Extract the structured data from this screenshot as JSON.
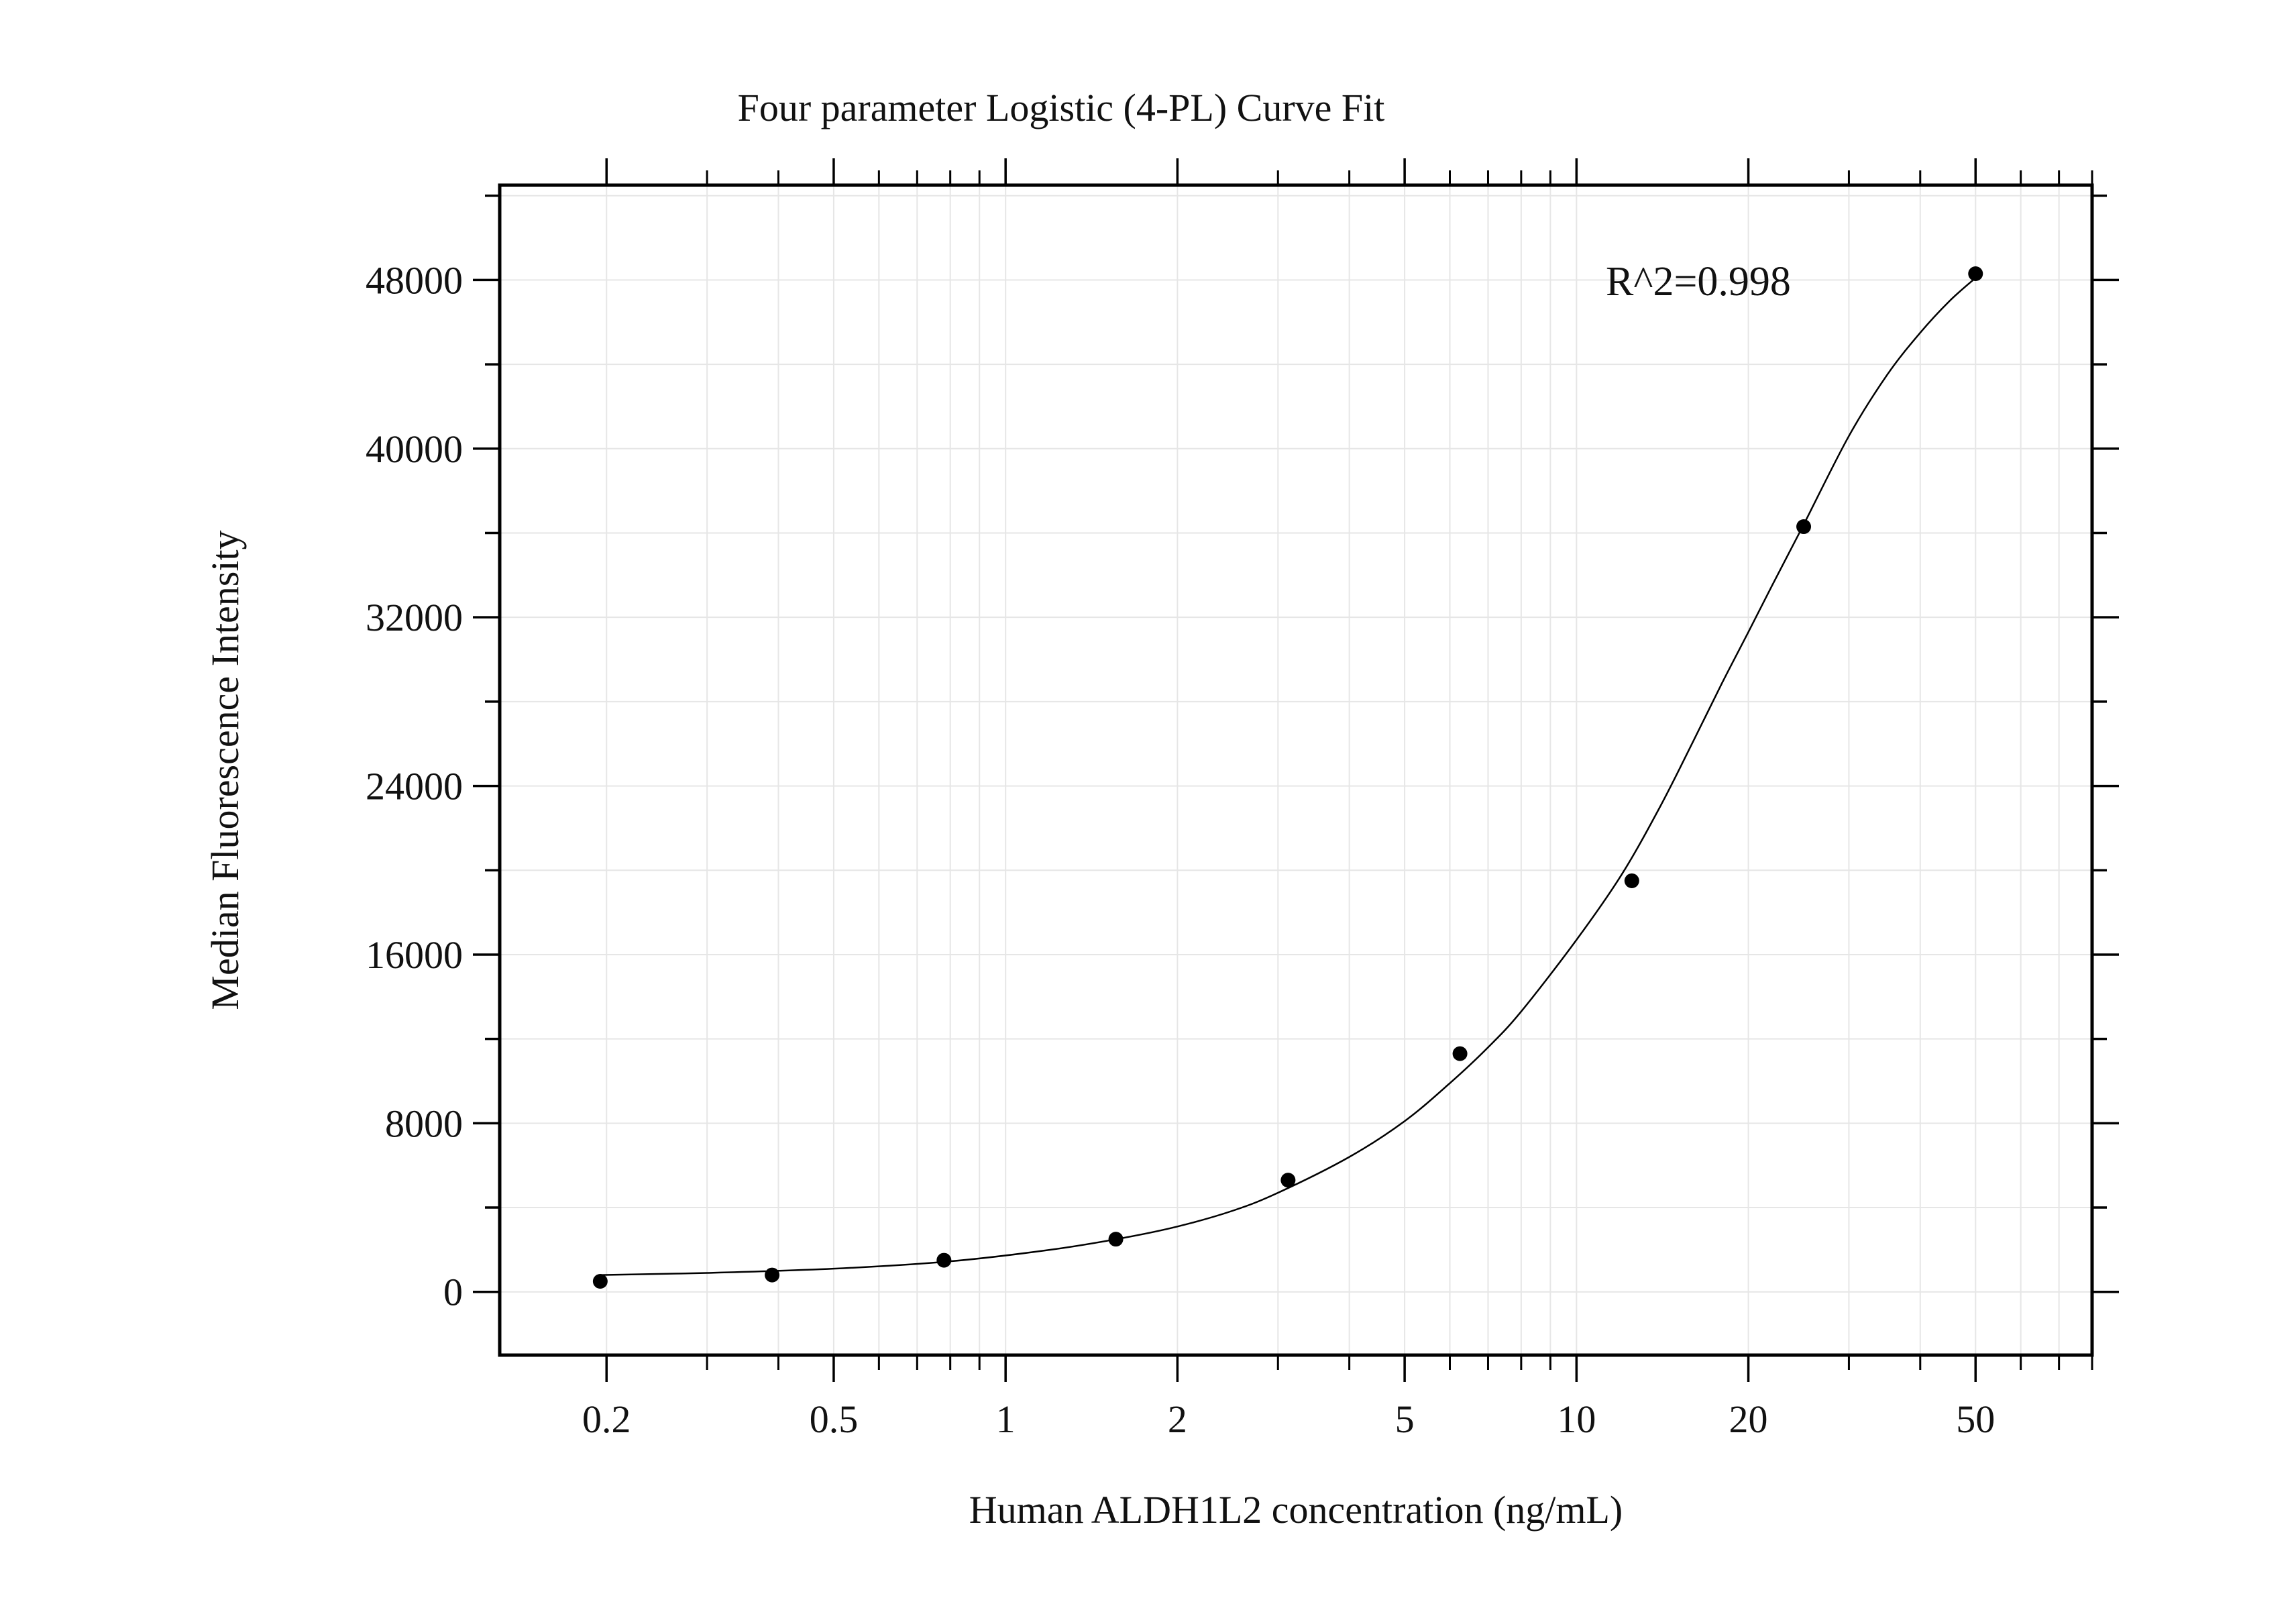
{
  "chart_data": {
    "type": "scatter",
    "title": "Four parameter Logistic (4-PL) Curve Fit",
    "xlabel": "Human ALDH1L2 concentration (ng/mL)",
    "ylabel": "Median Fluorescence Intensity",
    "x_scale": "log",
    "xlim": [
      0.13,
      80
    ],
    "ylim": [
      -3000,
      52500
    ],
    "x_ticks": [
      0.2,
      0.5,
      1,
      2,
      5,
      10,
      20,
      50
    ],
    "x_tick_labels": [
      "0.2",
      "0.5",
      "1",
      "2",
      "5",
      "10",
      "20",
      "50"
    ],
    "y_ticks": [
      0,
      8000,
      16000,
      24000,
      32000,
      40000,
      48000
    ],
    "y_tick_labels": [
      "0",
      "8000",
      "16000",
      "24000",
      "32000",
      "40000",
      "48000"
    ],
    "grid": true,
    "annotation": "R^2=0.998",
    "series": [
      {
        "kind": "points",
        "x": [
          0.195,
          0.39,
          0.78,
          1.56,
          3.125,
          6.25,
          12.5,
          25,
          50
        ],
        "y": [
          500,
          800,
          1500,
          2500,
          5300,
          11300,
          19500,
          36300,
          48300
        ]
      },
      {
        "kind": "fit",
        "x": [
          0.195,
          0.3,
          0.5,
          0.8,
          1.2,
          1.6,
          2.0,
          2.5,
          3.0,
          4.0,
          5.0,
          6.0,
          7.0,
          8.0,
          10,
          12,
          14,
          16,
          18,
          20,
          22,
          25,
          30,
          35,
          40,
          45,
          50
        ],
        "y": [
          800,
          900,
          1100,
          1450,
          2000,
          2550,
          3100,
          3850,
          4700,
          6400,
          8100,
          9900,
          11600,
          13300,
          16700,
          19800,
          23000,
          26100,
          28900,
          31300,
          33500,
          36400,
          40600,
          43500,
          45500,
          47000,
          48100
        ]
      }
    ]
  }
}
